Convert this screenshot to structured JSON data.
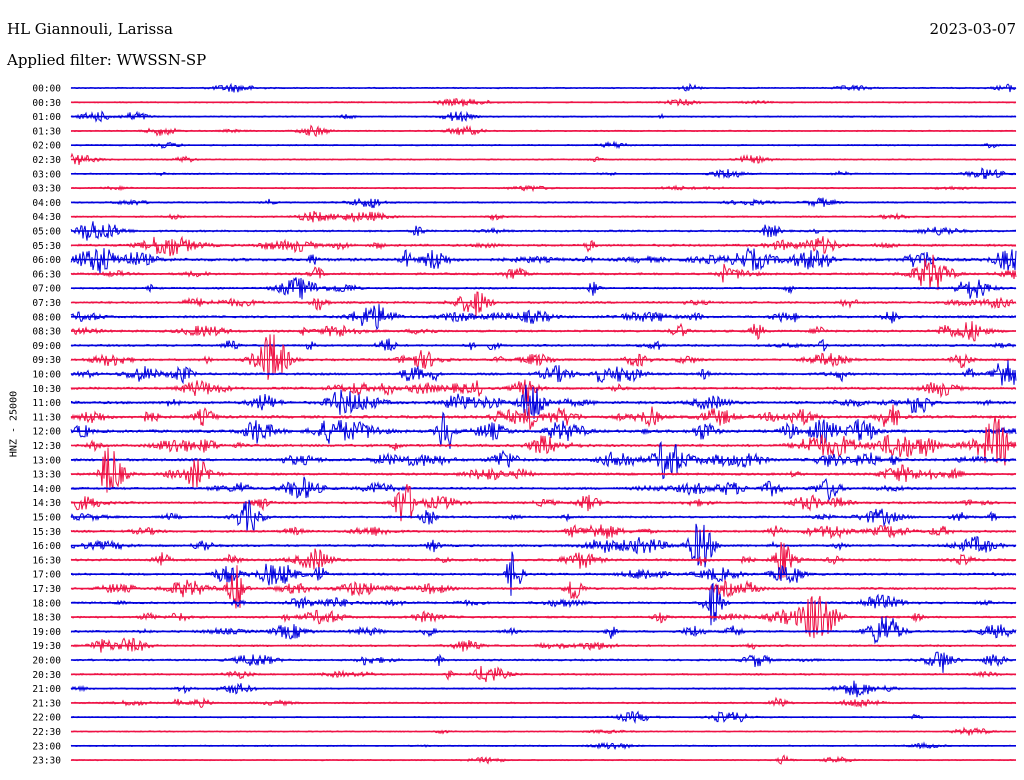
{
  "header": {
    "station": "HL Giannouli, Larissa",
    "date": "2023-03-07",
    "filter": "Applied filter: WWSSN-SP"
  },
  "chart_data": {
    "type": "line",
    "subtype": "helicorder",
    "ylabel": "HNZ - 25000",
    "row_labels": [
      "00:00",
      "00:30",
      "01:00",
      "01:30",
      "02:00",
      "02:30",
      "03:00",
      "03:30",
      "04:00",
      "04:30",
      "05:00",
      "05:30",
      "06:00",
      "06:30",
      "07:00",
      "07:30",
      "08:00",
      "08:30",
      "09:00",
      "09:30",
      "10:00",
      "10:30",
      "11:00",
      "11:30",
      "12:00",
      "12:30",
      "13:00",
      "13:30",
      "14:00",
      "14:30",
      "15:00",
      "15:30",
      "16:00",
      "16:30",
      "17:00",
      "17:30",
      "18:00",
      "18:30",
      "19:00",
      "19:30",
      "20:00",
      "20:30",
      "21:00",
      "21:30",
      "22:00",
      "22:30",
      "23:00",
      "23:30"
    ],
    "series_colors": [
      "#0000dd",
      "#ee1144"
    ],
    "activity_level": [
      0.1,
      0.1,
      0.12,
      0.1,
      0.1,
      0.12,
      0.12,
      0.12,
      0.18,
      0.2,
      0.32,
      0.45,
      0.7,
      0.38,
      0.3,
      0.4,
      0.45,
      0.42,
      0.38,
      0.38,
      0.45,
      0.5,
      0.58,
      0.62,
      0.68,
      0.55,
      0.55,
      0.45,
      0.45,
      0.4,
      0.38,
      0.4,
      0.45,
      0.45,
      0.42,
      0.4,
      0.35,
      0.35,
      0.35,
      0.3,
      0.3,
      0.25,
      0.18,
      0.18,
      0.08,
      0.06,
      0.06,
      0.05
    ]
  }
}
